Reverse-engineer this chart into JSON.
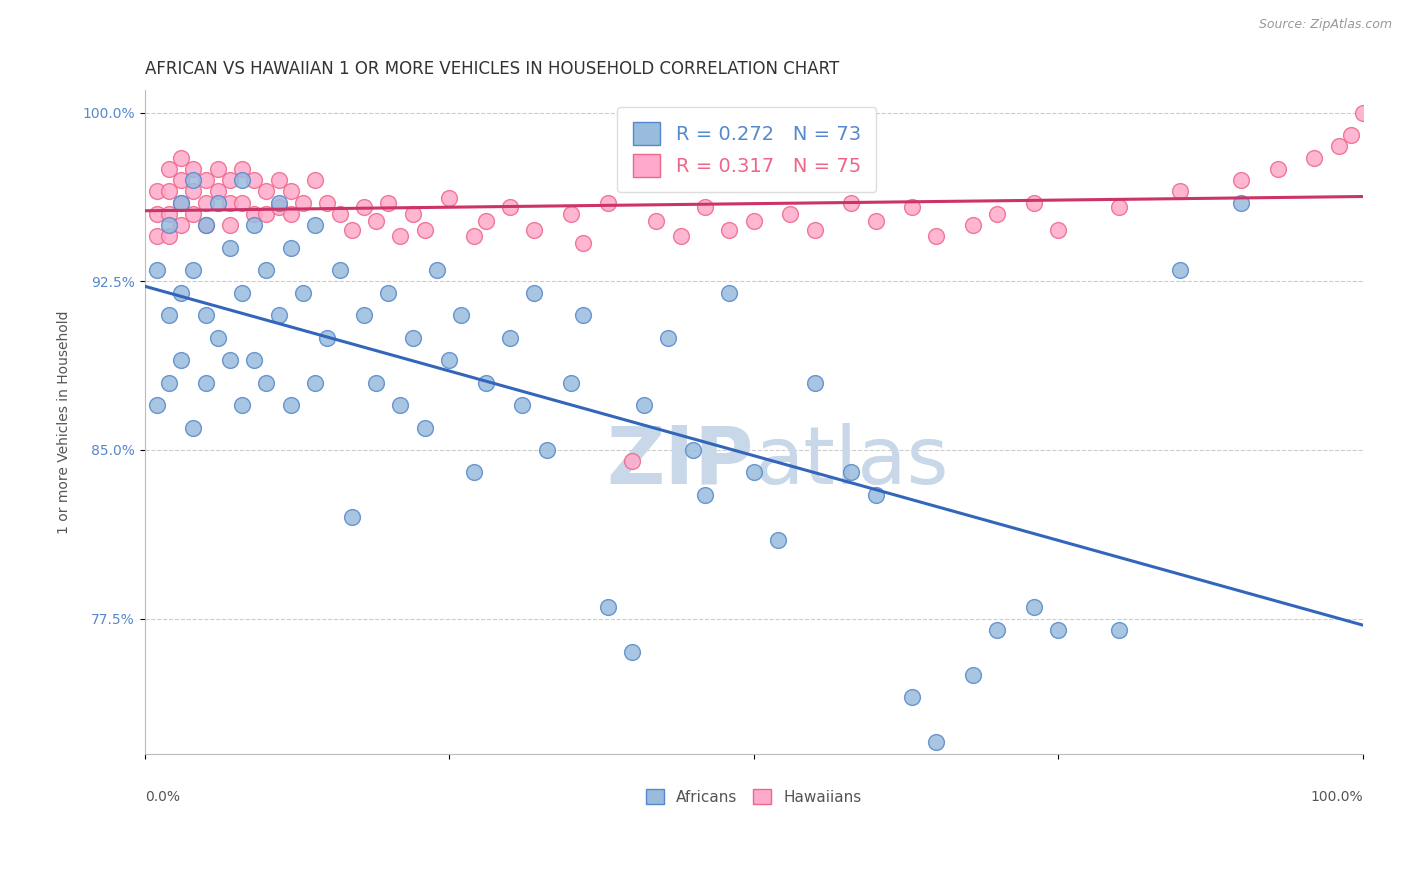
{
  "title": "AFRICAN VS HAWAIIAN 1 OR MORE VEHICLES IN HOUSEHOLD CORRELATION CHART",
  "source": "Source: ZipAtlas.com",
  "ylabel": "1 or more Vehicles in Household",
  "xlim": [
    0,
    1
  ],
  "ylim": [
    0.715,
    1.01
  ],
  "yticks": [
    0.775,
    0.85,
    0.925,
    1.0
  ],
  "ytick_labels": [
    "77.5%",
    "85.0%",
    "92.5%",
    "100.0%"
  ],
  "legend_line1": "R = 0.272   N = 73",
  "legend_line2": "R = 0.317   N = 75",
  "legend_color1": "#5588cc",
  "legend_color2": "#ee6688",
  "african_color_face": "#99bbdd",
  "african_color_edge": "#5588cc",
  "hawaiian_color_face": "#ffaacc",
  "hawaiian_color_edge": "#ee6688",
  "line_color_african": "#3366bb",
  "line_color_hawaiian": "#cc3366",
  "tick_color": "#5588cc",
  "watermark_zip": "ZIP",
  "watermark_atlas": "atlas",
  "watermark_color_zip": "#c8d8e8",
  "watermark_color_atlas": "#c8d8e8",
  "background_color": "#ffffff",
  "grid_color": "#cccccc",
  "title_fontsize": 12,
  "axis_label_fontsize": 10,
  "tick_fontsize": 10,
  "source_fontsize": 9,
  "african_points_x": [
    0.01,
    0.01,
    0.02,
    0.02,
    0.02,
    0.03,
    0.03,
    0.03,
    0.04,
    0.04,
    0.04,
    0.05,
    0.05,
    0.05,
    0.06,
    0.06,
    0.07,
    0.07,
    0.08,
    0.08,
    0.08,
    0.09,
    0.09,
    0.1,
    0.1,
    0.11,
    0.11,
    0.12,
    0.12,
    0.13,
    0.14,
    0.14,
    0.15,
    0.16,
    0.17,
    0.18,
    0.19,
    0.2,
    0.21,
    0.22,
    0.23,
    0.24,
    0.25,
    0.26,
    0.27,
    0.28,
    0.3,
    0.31,
    0.32,
    0.33,
    0.35,
    0.36,
    0.38,
    0.4,
    0.41,
    0.43,
    0.45,
    0.46,
    0.48,
    0.5,
    0.52,
    0.55,
    0.58,
    0.6,
    0.63,
    0.65,
    0.68,
    0.7,
    0.73,
    0.75,
    0.8,
    0.85,
    0.9
  ],
  "african_points_y": [
    0.93,
    0.87,
    0.95,
    0.91,
    0.88,
    0.96,
    0.92,
    0.89,
    0.97,
    0.93,
    0.86,
    0.95,
    0.91,
    0.88,
    0.96,
    0.9,
    0.94,
    0.89,
    0.97,
    0.92,
    0.87,
    0.95,
    0.89,
    0.93,
    0.88,
    0.96,
    0.91,
    0.94,
    0.87,
    0.92,
    0.95,
    0.88,
    0.9,
    0.93,
    0.82,
    0.91,
    0.88,
    0.92,
    0.87,
    0.9,
    0.86,
    0.93,
    0.89,
    0.91,
    0.84,
    0.88,
    0.9,
    0.87,
    0.92,
    0.85,
    0.88,
    0.91,
    0.78,
    0.76,
    0.87,
    0.9,
    0.85,
    0.83,
    0.92,
    0.84,
    0.81,
    0.88,
    0.84,
    0.83,
    0.74,
    0.72,
    0.75,
    0.77,
    0.78,
    0.77,
    0.77,
    0.93,
    0.96
  ],
  "hawaiian_points_x": [
    0.01,
    0.01,
    0.01,
    0.02,
    0.02,
    0.02,
    0.02,
    0.03,
    0.03,
    0.03,
    0.03,
    0.04,
    0.04,
    0.04,
    0.05,
    0.05,
    0.05,
    0.06,
    0.06,
    0.07,
    0.07,
    0.07,
    0.08,
    0.08,
    0.09,
    0.09,
    0.1,
    0.1,
    0.11,
    0.11,
    0.12,
    0.12,
    0.13,
    0.14,
    0.15,
    0.16,
    0.17,
    0.18,
    0.19,
    0.2,
    0.21,
    0.22,
    0.23,
    0.25,
    0.27,
    0.28,
    0.3,
    0.32,
    0.35,
    0.36,
    0.38,
    0.4,
    0.42,
    0.44,
    0.46,
    0.48,
    0.5,
    0.53,
    0.55,
    0.58,
    0.6,
    0.63,
    0.65,
    0.68,
    0.7,
    0.73,
    0.75,
    0.8,
    0.85,
    0.9,
    0.93,
    0.96,
    0.98,
    0.99,
    1.0
  ],
  "hawaiian_points_y": [
    0.965,
    0.955,
    0.945,
    0.975,
    0.965,
    0.955,
    0.945,
    0.98,
    0.97,
    0.96,
    0.95,
    0.975,
    0.965,
    0.955,
    0.97,
    0.96,
    0.95,
    0.975,
    0.965,
    0.97,
    0.96,
    0.95,
    0.975,
    0.96,
    0.97,
    0.955,
    0.965,
    0.955,
    0.97,
    0.958,
    0.965,
    0.955,
    0.96,
    0.97,
    0.96,
    0.955,
    0.948,
    0.958,
    0.952,
    0.96,
    0.945,
    0.955,
    0.948,
    0.962,
    0.945,
    0.952,
    0.958,
    0.948,
    0.955,
    0.942,
    0.96,
    0.845,
    0.952,
    0.945,
    0.958,
    0.948,
    0.952,
    0.955,
    0.948,
    0.96,
    0.952,
    0.958,
    0.945,
    0.95,
    0.955,
    0.96,
    0.948,
    0.958,
    0.965,
    0.97,
    0.975,
    0.98,
    0.985,
    0.99,
    1.0
  ]
}
